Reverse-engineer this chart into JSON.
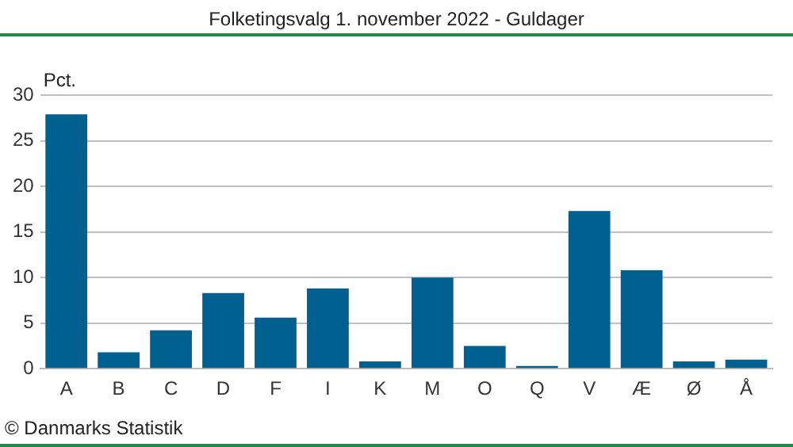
{
  "chart_data": {
    "type": "bar",
    "title": "Folketingsvalg 1. november 2022 - Guldager",
    "ylabel": "Pct.",
    "categories": [
      "A",
      "B",
      "C",
      "D",
      "F",
      "I",
      "K",
      "M",
      "O",
      "Q",
      "V",
      "Æ",
      "Ø",
      "Å"
    ],
    "values": [
      27.9,
      1.8,
      4.2,
      8.3,
      5.6,
      8.8,
      0.8,
      10.0,
      2.5,
      0.3,
      17.3,
      10.8,
      0.8,
      1.0
    ],
    "color": "#006090",
    "ylim": [
      0,
      30
    ],
    "yticks": [
      0,
      5,
      10,
      15,
      20,
      25,
      30
    ],
    "grid": "y",
    "annotations": [
      "© Danmarks Statistik"
    ]
  }
}
